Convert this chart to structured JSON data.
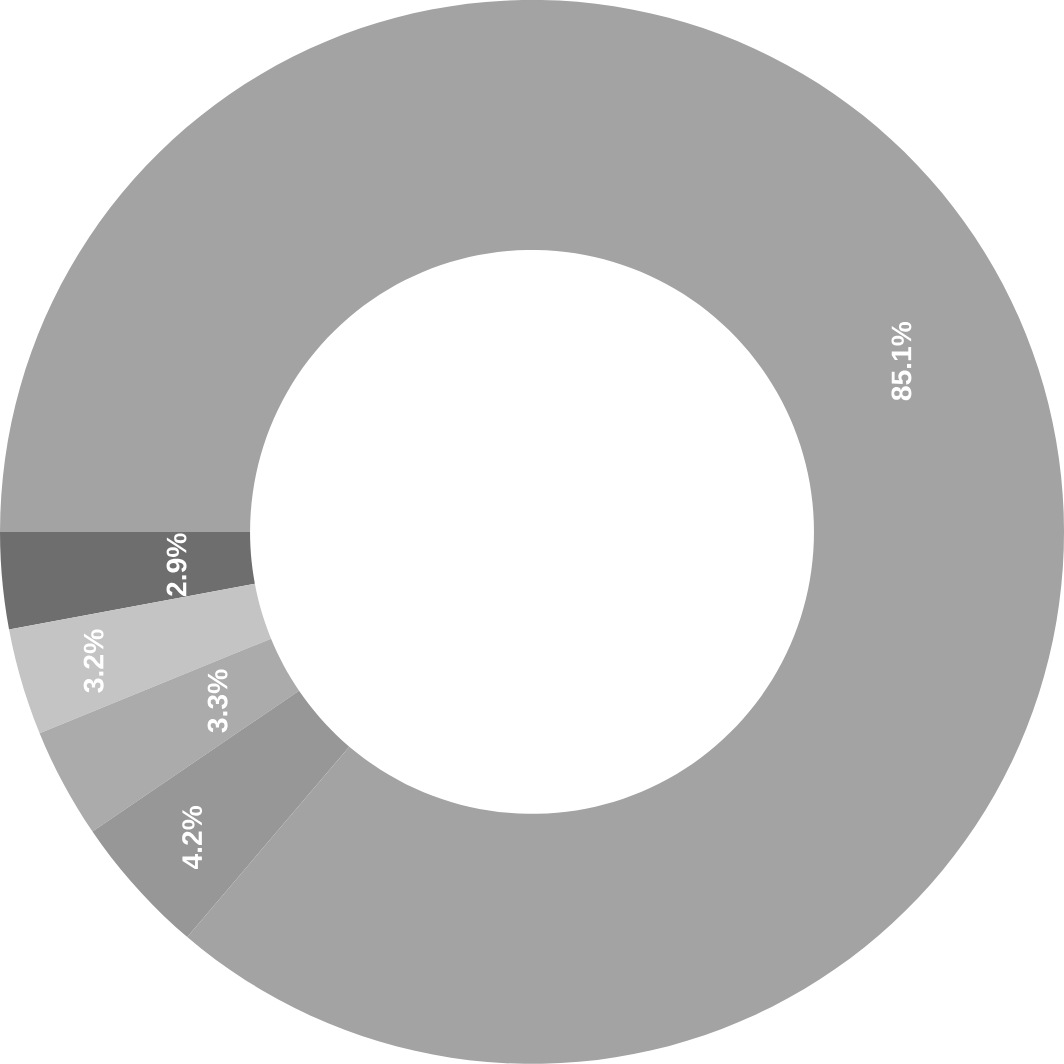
{
  "chart_data": {
    "type": "donut",
    "categories": [
      null,
      null,
      null,
      null,
      null
    ],
    "values": [
      2.9,
      3.2,
      3.3,
      4.2,
      85.1
    ],
    "colors": [
      "#6e6e6e",
      "#c4c4c4",
      "#ababab",
      "#979797",
      "#a3a3a3"
    ],
    "value_labels": [
      "2.9%",
      "3.2%",
      "3.3%",
      "4.2%",
      "85.1%"
    ]
  }
}
